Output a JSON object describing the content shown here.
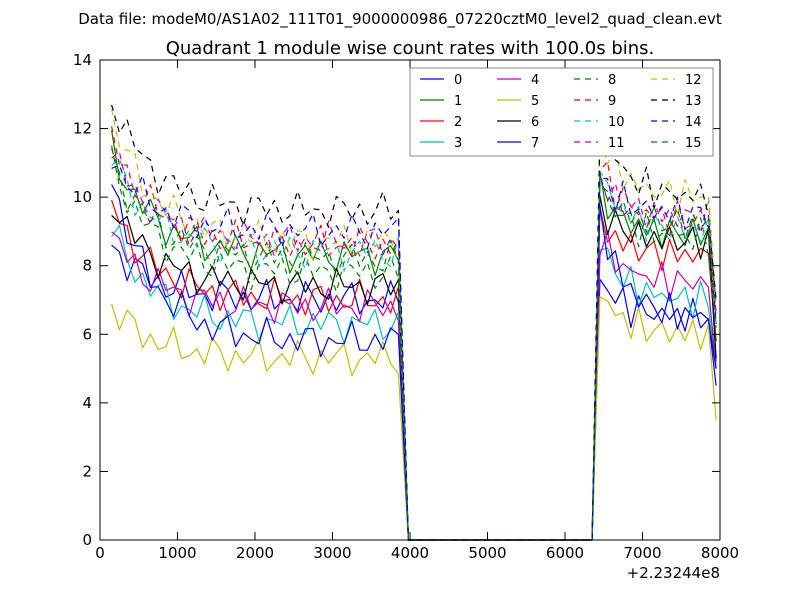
{
  "chart_data": {
    "type": "line",
    "supertitle": "Data file: modeM0/AS1A02_111T01_9000000986_07220cztM0_level2_quad_clean.evt",
    "title": "Quadrant 1 module wise count rates with 100.0s bins.",
    "xlabel": "",
    "ylabel": "",
    "x_offset_label": "+2.23244e8",
    "xlim": [
      0,
      8000
    ],
    "ylim": [
      0,
      14
    ],
    "xticks": [
      0,
      1000,
      2000,
      3000,
      4000,
      5000,
      6000,
      7000,
      8000
    ],
    "yticks": [
      0,
      2,
      4,
      6,
      8,
      10,
      12,
      14
    ],
    "legend": {
      "placement": "top-right",
      "columns": 4
    },
    "x_segment1": {
      "start": 150,
      "step": 100,
      "count": 38
    },
    "x_segment2": {
      "start": 6450,
      "step": 100,
      "count": 16
    },
    "gap_points": [
      [
        3980,
        0
      ],
      [
        4050,
        0
      ],
      [
        6300,
        0
      ],
      [
        6350,
        0
      ]
    ],
    "series": [
      {
        "name": "0",
        "color": "#0000ff",
        "dashed": false,
        "level1": 7.0,
        "level2": 6.5,
        "start": 8.6,
        "start2": 7.6,
        "end": 4.5
      },
      {
        "name": "1",
        "color": "#008000",
        "dashed": false,
        "level1": 8.3,
        "level2": 8.9,
        "start": 11.4,
        "start2": 10.2,
        "end": 5.2
      },
      {
        "name": "2",
        "color": "#ff0000",
        "dashed": false,
        "level1": 7.0,
        "level2": 8.3,
        "start": 9.8,
        "start2": 9.3,
        "end": 5.8
      },
      {
        "name": "3",
        "color": "#00bfbf",
        "dashed": false,
        "level1": 6.3,
        "level2": 7.0,
        "start": 9.1,
        "start2": 8.7,
        "end": 5.0
      },
      {
        "name": "4",
        "color": "#bf00bf",
        "dashed": false,
        "level1": 6.8,
        "level2": 7.5,
        "start": 8.9,
        "start2": 8.8,
        "end": 5.0
      },
      {
        "name": "5",
        "color": "#bfbf00",
        "dashed": false,
        "level1": 5.3,
        "level2": 6.0,
        "start": 6.8,
        "start2": 7.2,
        "end": 3.5
      },
      {
        "name": "6",
        "color": "#000000",
        "dashed": false,
        "level1": 7.4,
        "level2": 8.7,
        "start": 9.9,
        "start2": 9.7,
        "end": 5.3
      },
      {
        "name": "7",
        "color": "#0000ff",
        "dashed": false,
        "level1": 5.8,
        "level2": 6.5,
        "start": 10.6,
        "start2": 9.5,
        "end": 5.0
      },
      {
        "name": "8",
        "color": "#008000",
        "dashed": true,
        "level1": 7.8,
        "level2": 8.8,
        "start": 11.0,
        "start2": 10.5,
        "end": 6.2
      },
      {
        "name": "9",
        "color": "#ff0000",
        "dashed": true,
        "level1": 8.6,
        "level2": 9.3,
        "start": 11.7,
        "start2": 11.0,
        "end": 6.6
      },
      {
        "name": "10",
        "color": "#00bfbf",
        "dashed": true,
        "level1": 8.4,
        "level2": 9.0,
        "start": 11.2,
        "start2": 10.7,
        "end": 6.3
      },
      {
        "name": "11",
        "color": "#bf00bf",
        "dashed": true,
        "level1": 8.7,
        "level2": 9.4,
        "start": 11.3,
        "start2": 10.5,
        "end": 6.5
      },
      {
        "name": "12",
        "color": "#bfbf00",
        "dashed": true,
        "level1": 8.7,
        "level2": 10.0,
        "start": 12.4,
        "start2": 11.8,
        "end": 7.0
      },
      {
        "name": "13",
        "color": "#000000",
        "dashed": true,
        "level1": 9.6,
        "level2": 10.0,
        "start": 12.9,
        "start2": 12.2,
        "end": 7.0
      },
      {
        "name": "14",
        "color": "#0000ff",
        "dashed": true,
        "level1": 9.0,
        "level2": 9.5,
        "start": 11.2,
        "start2": 10.6,
        "end": 6.3
      },
      {
        "name": "15",
        "color": "#008000",
        "dashed": true,
        "level1": 8.2,
        "level2": 9.2,
        "start": 11.1,
        "start2": 10.2,
        "end": 5.8
      }
    ]
  }
}
